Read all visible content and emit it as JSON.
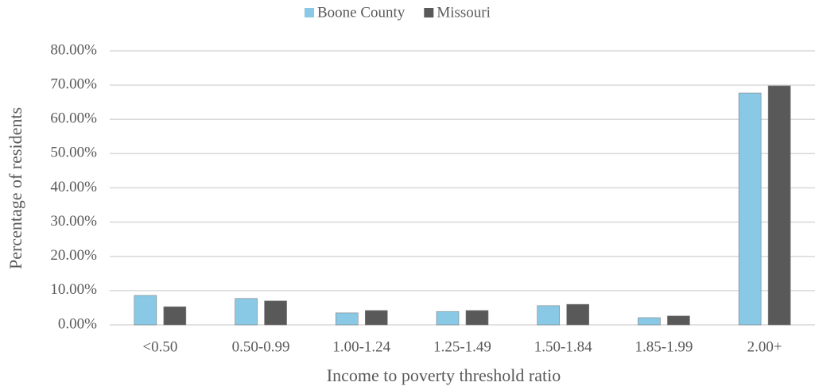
{
  "chart_data": {
    "type": "bar",
    "categories": [
      "<0.50",
      "0.50-0.99",
      "1.00-1.24",
      "1.25-1.49",
      "1.50-1.84",
      "1.85-1.99",
      "2.00+"
    ],
    "series": [
      {
        "name": "Boone County",
        "color": "#89c9e6",
        "values": [
          8.6,
          7.7,
          3.5,
          3.9,
          5.6,
          2.1,
          67.7
        ]
      },
      {
        "name": "Missouri",
        "color": "#595959",
        "values": [
          5.3,
          7.0,
          4.2,
          4.2,
          6.0,
          2.6,
          69.8
        ]
      }
    ],
    "x_label": "Income to poverty threshold ratio",
    "y_label": "Percentage of residents",
    "ylim": [
      0,
      80
    ],
    "yticks": [
      {
        "value": 0,
        "label": "0.00%"
      },
      {
        "value": 10,
        "label": "10.00%"
      },
      {
        "value": 20,
        "label": "20.00%"
      },
      {
        "value": 30,
        "label": "30.00%"
      },
      {
        "value": 40,
        "label": "40.00%"
      },
      {
        "value": 50,
        "label": "50.00%"
      },
      {
        "value": 60,
        "label": "60.00%"
      },
      {
        "value": 70,
        "label": "70.00%"
      },
      {
        "value": 80,
        "label": "80.00%"
      }
    ],
    "grid": true,
    "legend": "top"
  }
}
